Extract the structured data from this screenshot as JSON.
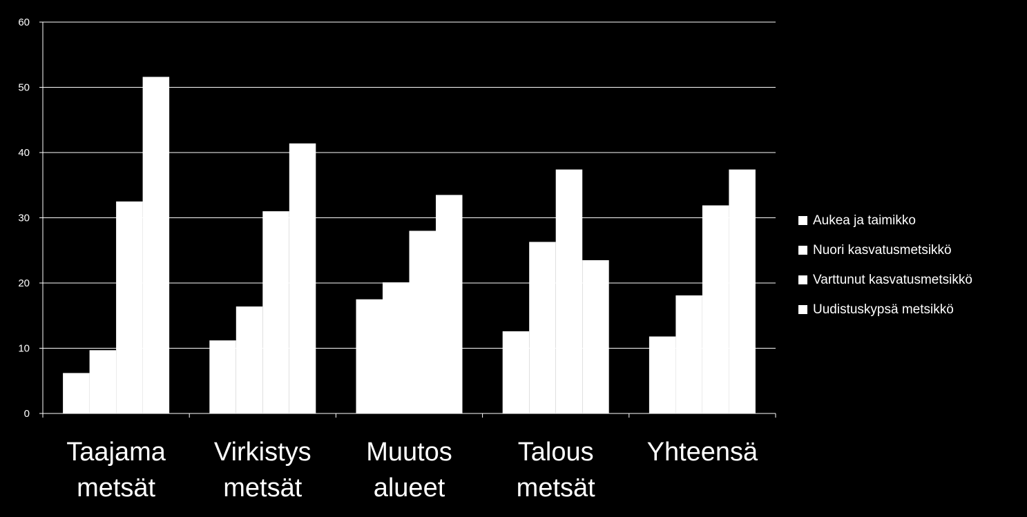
{
  "chart_data": {
    "type": "bar",
    "categories": [
      [
        "Taajama",
        "metsät"
      ],
      [
        "Virkistys",
        "metsät"
      ],
      [
        "Muutos",
        "alueet"
      ],
      [
        "Talous",
        "metsät"
      ],
      [
        "Yhteensä"
      ]
    ],
    "series": [
      {
        "name": "Aukea ja taimikko",
        "values": [
          6.2,
          11.2,
          17.5,
          12.6,
          11.8
        ]
      },
      {
        "name": "Nuori kasvatusmetsikkö",
        "values": [
          9.7,
          16.4,
          20.1,
          26.3,
          18.1
        ]
      },
      {
        "name": "Varttunut kasvatusmetsikkö",
        "values": [
          32.5,
          31.0,
          28.0,
          37.4,
          31.9
        ]
      },
      {
        "name": "Uudistuskypsä metsikkö",
        "values": [
          51.6,
          41.4,
          33.5,
          23.5,
          37.4
        ]
      }
    ],
    "ylim": [
      0,
      60
    ],
    "yticks": [
      0,
      10,
      20,
      30,
      40,
      50,
      60
    ],
    "grid": true,
    "legend_position": "right",
    "colors": {
      "background": "#000000",
      "bars": "#ffffff",
      "text": "#ffffff",
      "grid": "#ffffff"
    }
  }
}
